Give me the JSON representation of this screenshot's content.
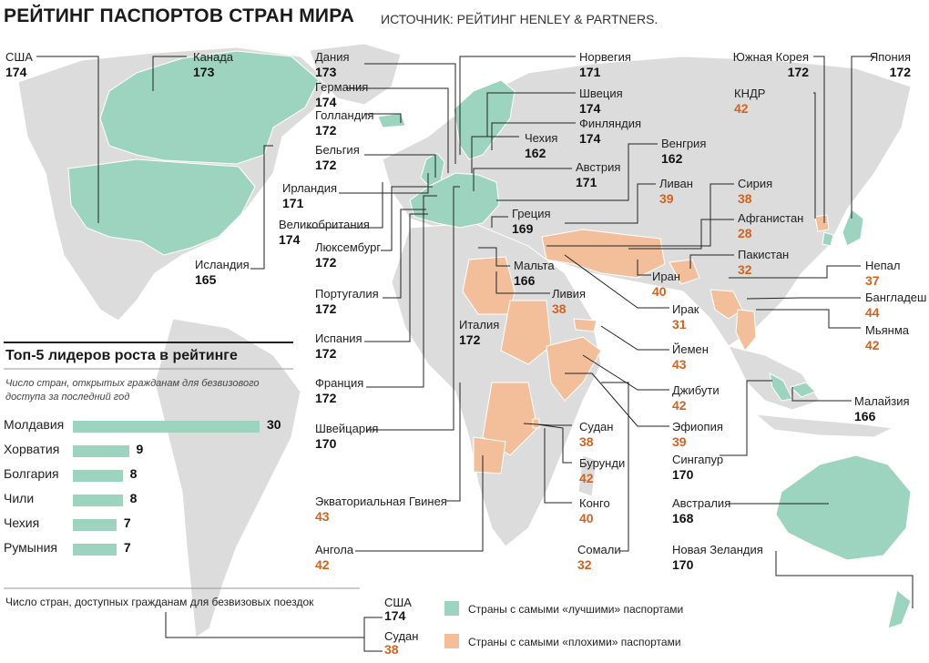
{
  "header": {
    "title": "РЕЙТИНГ ПАСПОРТОВ СТРАН МИРА",
    "source": "ИСТОЧНИК:  РЕЙТИНГ HENLEY & PARTNERS."
  },
  "colors": {
    "best": "#9dd4c0",
    "worst": "#f2bf9a",
    "land": "#dcdcdc",
    "worst_value": "#d4621e"
  },
  "labels": {
    "usa": {
      "name": "США",
      "value": "174"
    },
    "canada": {
      "name": "Канада",
      "value": "173"
    },
    "denmark": {
      "name": "Дания",
      "value": "173"
    },
    "germany": {
      "name": "Германия",
      "value": "174"
    },
    "netherlands": {
      "name": "Голландия",
      "value": "172"
    },
    "belgium": {
      "name": "Бельгия",
      "value": "172"
    },
    "ireland": {
      "name": "Ирландия",
      "value": "171"
    },
    "uk": {
      "name": "Великобритания",
      "value": "174"
    },
    "iceland": {
      "name": "Исландия",
      "value": "165"
    },
    "luxembourg": {
      "name": "Люксембург",
      "value": "172"
    },
    "portugal": {
      "name": "Португалия",
      "value": "172"
    },
    "spain": {
      "name": "Испания",
      "value": "172"
    },
    "france": {
      "name": "Франция",
      "value": "172"
    },
    "switzerland": {
      "name": "Швейцария",
      "value": "170"
    },
    "eq_guinea": {
      "name": "Экваториальная Гвинея",
      "value": "43"
    },
    "angola": {
      "name": "Ангола",
      "value": "42"
    },
    "norway": {
      "name": "Норвегия",
      "value": "171"
    },
    "sweden": {
      "name": "Швеция",
      "value": "174"
    },
    "finland": {
      "name": "Финляндия",
      "value": "174"
    },
    "czech": {
      "name": "Чехия",
      "value": "162"
    },
    "austria": {
      "name": "Австрия",
      "value": "171"
    },
    "hungary": {
      "name": "Венгрия",
      "value": "162"
    },
    "greece": {
      "name": "Греция",
      "value": "169"
    },
    "malta": {
      "name": "Мальта",
      "value": "166"
    },
    "italy": {
      "name": "Италия",
      "value": "172"
    },
    "libya": {
      "name": "Ливия",
      "value": "38"
    },
    "lebanon": {
      "name": "Ливан",
      "value": "39"
    },
    "syria": {
      "name": "Сирия",
      "value": "38"
    },
    "afghanistan": {
      "name": "Афганистан",
      "value": "28"
    },
    "pakistan": {
      "name": "Пакистан",
      "value": "32"
    },
    "iran": {
      "name": "Иран",
      "value": "40"
    },
    "iraq": {
      "name": "Ирак",
      "value": "31"
    },
    "yemen": {
      "name": "Йемен",
      "value": "43"
    },
    "djibouti": {
      "name": "Джибути",
      "value": "42"
    },
    "ethiopia": {
      "name": "Эфиопия",
      "value": "39"
    },
    "sudan": {
      "name": "Судан",
      "value": "38"
    },
    "burundi": {
      "name": "Бурунди",
      "value": "42"
    },
    "congo": {
      "name": "Конго",
      "value": "40"
    },
    "somalia": {
      "name": "Сомали",
      "value": "32"
    },
    "south_korea": {
      "name": "Южная Корея",
      "value": "172"
    },
    "north_korea": {
      "name": "КНДР",
      "value": "42"
    },
    "japan": {
      "name": "Япония",
      "value": "172"
    },
    "nepal": {
      "name": "Непал",
      "value": "37"
    },
    "bangladesh": {
      "name": "Бангладеш",
      "value": "44"
    },
    "myanmar": {
      "name": "Мьянма",
      "value": "42"
    },
    "malaysia": {
      "name": "Малайзия",
      "value": "166"
    },
    "singapore": {
      "name": "Сингапур",
      "value": "170"
    },
    "australia": {
      "name": "Австралия",
      "value": "168"
    },
    "new_zealand": {
      "name": "Новая Зеландия",
      "value": "170"
    }
  },
  "top5": {
    "title": "Топ-5 лидеров роста в рейтинге",
    "subtitle": "Число стран, открытых гражданам для безвизового доступа за последний год",
    "rows": [
      {
        "name": "Молдавия",
        "value": 30
      },
      {
        "name": "Хорватия",
        "value": 9
      },
      {
        "name": "Болгария",
        "value": 8
      },
      {
        "name": "Чили",
        "value": 8
      },
      {
        "name": "Чехия",
        "value": 7
      },
      {
        "name": "Румыния",
        "value": 7
      }
    ]
  },
  "footer": {
    "label": "Число стран, доступных гражданам для безвизовых поездок",
    "example_best": {
      "name": "США",
      "value": "174"
    },
    "example_worst": {
      "name": "Судан",
      "value": "38"
    },
    "legend_best": "Страны с самыми «лучшими» паспортами",
    "legend_worst": "Страны с самыми «плохими» паспортами"
  }
}
